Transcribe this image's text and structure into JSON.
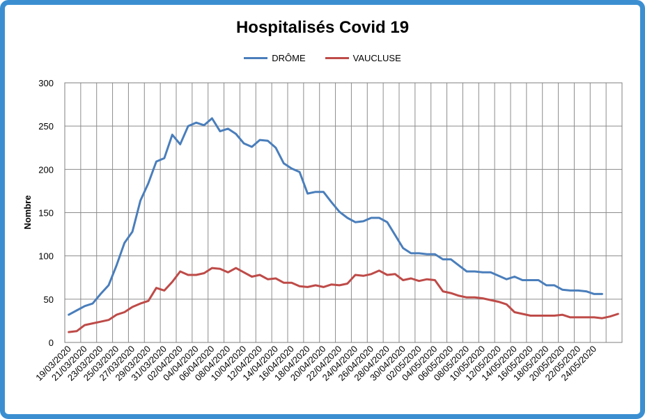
{
  "chart_data": {
    "type": "line",
    "title": "Hospitalisés Covid 19",
    "ylabel": "Nombre",
    "xlabel": "",
    "ylim": [
      0,
      300
    ],
    "yticks": [
      0,
      50,
      100,
      150,
      200,
      250,
      300
    ],
    "grid": true,
    "legend_position": "top",
    "xtick_labels": [
      "19/03/2020",
      "21/03/2020",
      "23/03/2020",
      "25/03/2020",
      "27/03/2020",
      "29/03/2020",
      "31/03/2020",
      "02/04/2020",
      "04/04/2020",
      "06/04/2020",
      "08/04/2020",
      "10/04/2020",
      "12/04/2020",
      "14/04/2020",
      "16/04/2020",
      "18/04/2020",
      "20/04/2020",
      "22/04/2020",
      "24/04/2020",
      "26/04/2020",
      "28/04/2020",
      "30/04/2020",
      "02/05/2020",
      "04/05/2020",
      "06/05/2020",
      "08/05/2020",
      "10/05/2020",
      "12/05/2020",
      "14/05/2020",
      "16/05/2020",
      "18/05/2020",
      "20/05/2020",
      "22/05/2020",
      "24/05/2020"
    ],
    "x_start": "19/03/2020",
    "series": [
      {
        "name": "DRÔME",
        "color": "#4a7ebb",
        "values": [
          32,
          37,
          42,
          45,
          56,
          66,
          89,
          115,
          128,
          164,
          184,
          209,
          213,
          240,
          229,
          250,
          254,
          251,
          259,
          244,
          247,
          241,
          230,
          226,
          234,
          233,
          225,
          207,
          201,
          197,
          172,
          174,
          174,
          162,
          151,
          144,
          139,
          140,
          144,
          144,
          139,
          124,
          109,
          103,
          103,
          102,
          102,
          96,
          96,
          89,
          82,
          82,
          81,
          81,
          77,
          73,
          76,
          72,
          72,
          72,
          66,
          66,
          61,
          60,
          60,
          59,
          56,
          56
        ]
      },
      {
        "name": "VAUCLUSE",
        "color": "#be4b48",
        "values": [
          12,
          13,
          20,
          22,
          24,
          26,
          32,
          35,
          41,
          45,
          48,
          63,
          60,
          70,
          82,
          78,
          78,
          80,
          86,
          85,
          81,
          86,
          81,
          76,
          78,
          73,
          74,
          69,
          69,
          65,
          64,
          66,
          64,
          67,
          66,
          68,
          78,
          77,
          79,
          83,
          78,
          79,
          72,
          74,
          71,
          73,
          72,
          59,
          57,
          54,
          52,
          52,
          51,
          49,
          47,
          44,
          35,
          33,
          31,
          31,
          31,
          31,
          32,
          29,
          29,
          29,
          29,
          28,
          30,
          33
        ]
      }
    ]
  }
}
